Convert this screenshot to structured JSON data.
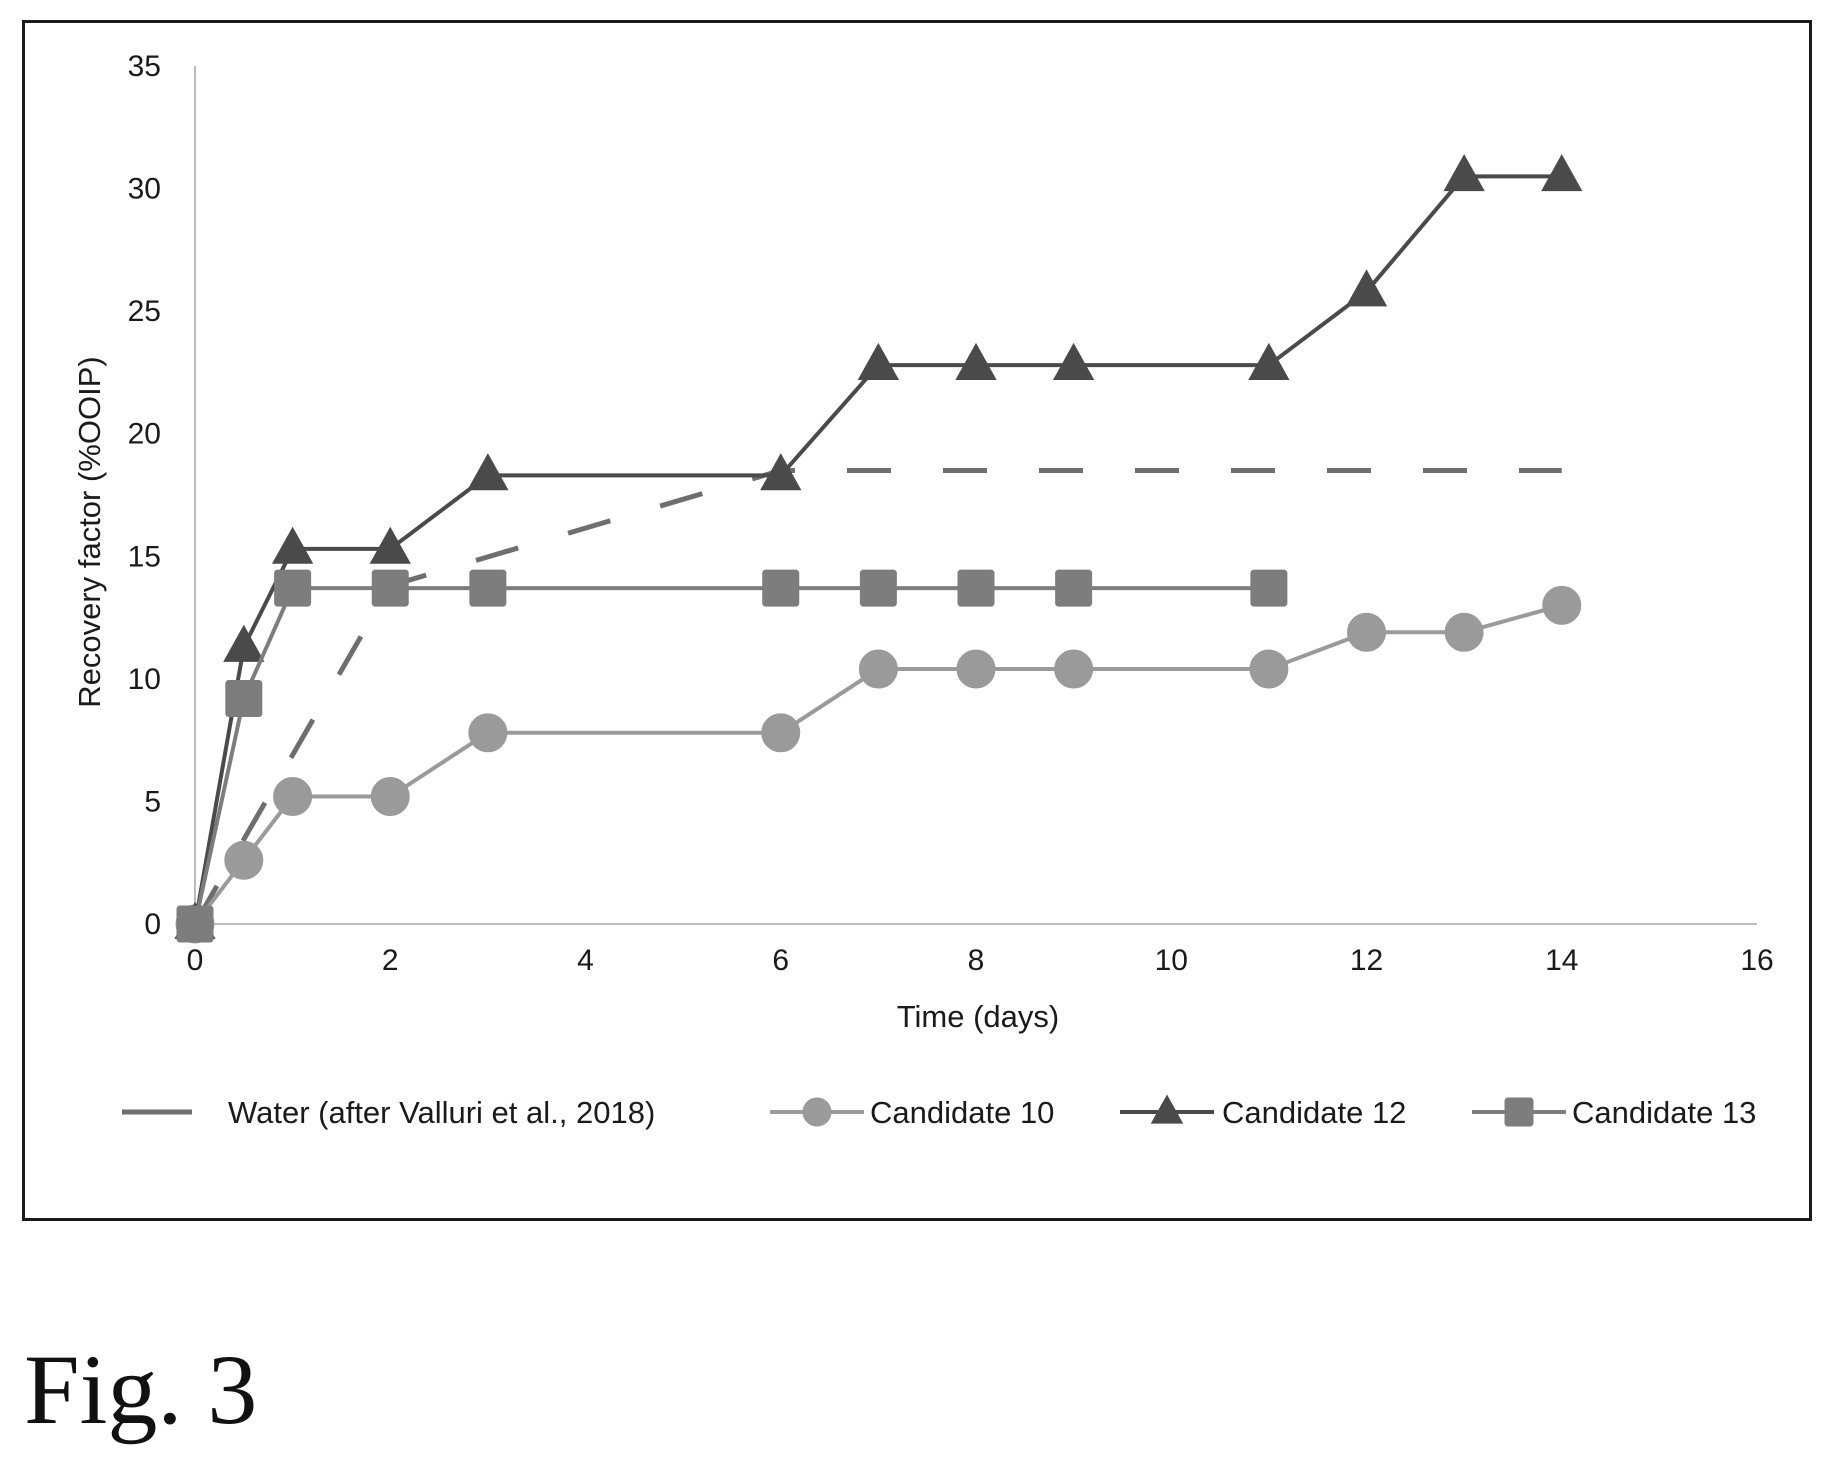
{
  "figure": {
    "caption": "Fig. 3"
  },
  "chart_data": {
    "type": "line",
    "title": "",
    "xlabel": "Time (days)",
    "ylabel": "Recovery factor (%OOIP)",
    "xlim": [
      0,
      16
    ],
    "ylim": [
      0,
      35
    ],
    "xticks": [
      0,
      2,
      4,
      6,
      8,
      10,
      12,
      14,
      16
    ],
    "yticks": [
      0,
      5,
      10,
      15,
      20,
      25,
      30,
      35
    ],
    "grid": false,
    "legend_position": "bottom",
    "series": [
      {
        "name": "Water (after Valluri et al., 2018)",
        "marker": "none",
        "dash": true,
        "color": "#6e6e6e",
        "x": [
          0,
          2,
          6,
          14
        ],
        "y": [
          0,
          13.8,
          18.5,
          18.5
        ]
      },
      {
        "name": "Candidate 10",
        "marker": "circle",
        "color": "#9a9a9a",
        "x": [
          0,
          0.5,
          1,
          2,
          3,
          6,
          7,
          8,
          9,
          11,
          12,
          13,
          14
        ],
        "y": [
          0,
          2.6,
          5.2,
          5.2,
          7.8,
          7.8,
          10.4,
          10.4,
          10.4,
          10.4,
          11.9,
          11.9,
          13.0
        ]
      },
      {
        "name": "Candidate 12",
        "marker": "triangle",
        "color": "#4a4a4a",
        "x": [
          0,
          0.5,
          1,
          2,
          3,
          6,
          7,
          8,
          9,
          11,
          12,
          13,
          14
        ],
        "y": [
          0,
          11.3,
          15.3,
          15.3,
          18.3,
          18.3,
          22.8,
          22.8,
          22.8,
          22.8,
          25.8,
          30.5,
          30.5
        ]
      },
      {
        "name": "Candidate 13",
        "marker": "square",
        "color": "#7d7d7d",
        "x": [
          0,
          0.5,
          1,
          2,
          3,
          6,
          7,
          8,
          9,
          11
        ],
        "y": [
          0,
          9.2,
          13.7,
          13.7,
          13.7,
          13.7,
          13.7,
          13.7,
          13.7,
          13.7
        ]
      }
    ]
  }
}
